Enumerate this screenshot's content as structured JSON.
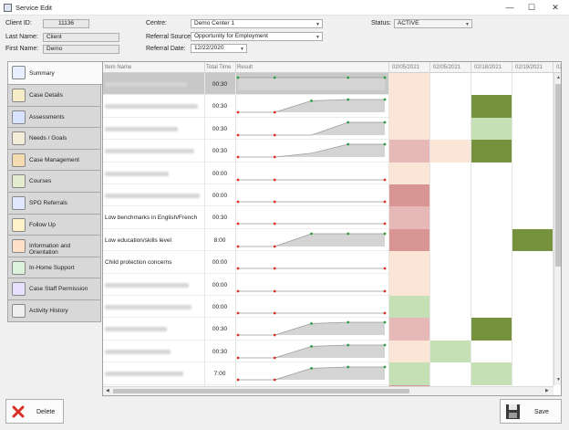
{
  "window": {
    "title": "Service Edit",
    "controls": [
      "—",
      "☐",
      "✕"
    ]
  },
  "form": {
    "client_id": {
      "label": "Client ID:",
      "value": "11136"
    },
    "last_name": {
      "label": "Last Name:",
      "value": "Client"
    },
    "first_name": {
      "label": "First Name:",
      "value": "Demo"
    },
    "centre": {
      "label": "Centre:",
      "value": "Demo Center 1"
    },
    "referral_source": {
      "label": "Referral Source:",
      "value": "Opportunity for Employment"
    },
    "referral_date": {
      "label": "Referral Date:",
      "value": "12/22/2020"
    },
    "status": {
      "label": "Status:",
      "value": "ACTIVE"
    }
  },
  "tabs": [
    {
      "label": "Summary",
      "icon": "line-chart-icon",
      "active": true
    },
    {
      "label": "Case Details",
      "icon": "document-icon"
    },
    {
      "label": "Assessments",
      "icon": "assessment-icon"
    },
    {
      "label": "Needs / Goals",
      "icon": "checklist-icon"
    },
    {
      "label": "Case Management",
      "icon": "briefcase-icon"
    },
    {
      "label": "Courses",
      "icon": "courses-icon"
    },
    {
      "label": "SPO Referrals",
      "icon": "referral-icon"
    },
    {
      "label": "Follow Up",
      "icon": "follow-up-icon"
    },
    {
      "label": "Information and Orientation",
      "icon": "calendar-icon"
    },
    {
      "label": "In-Home Support",
      "icon": "home-support-icon"
    },
    {
      "label": "Case Staff Permission",
      "icon": "staff-permission-icon"
    },
    {
      "label": "Activity History",
      "icon": "eye-icon"
    }
  ],
  "grid": {
    "columns": {
      "item_name": "Item Name",
      "total_time": "Total Time",
      "result": "Result"
    },
    "dates": [
      "02/05/2021",
      "02/05/2021",
      "02/18/2021",
      "02/19/2021",
      "02/"
    ],
    "rows": [
      {
        "name": "",
        "time": "00:30",
        "spark": [
          1,
          1,
          1,
          1,
          1
        ],
        "heat": [
          "#fbe5d6",
          "#ffffff",
          "#ffffff",
          "#ffffff",
          "#ffffff"
        ],
        "selected": true
      },
      {
        "name": "",
        "time": "00:30",
        "spark": [
          0,
          0,
          0.9,
          1,
          1
        ],
        "heat": [
          "#fbe5d6",
          "#ffffff",
          "#76923c",
          "#ffffff",
          "#ffffff"
        ]
      },
      {
        "name": "",
        "time": "00:30",
        "spark": [
          0,
          0,
          0,
          1,
          1
        ],
        "heat": [
          "#fbe5d6",
          "#ffffff",
          "#c5e0b4",
          "#ffffff",
          "#ffffff"
        ]
      },
      {
        "name": "",
        "time": "00:30",
        "spark": [
          0,
          0,
          0.3,
          1,
          1
        ],
        "heat": [
          "#e6b9b8",
          "#fbe5d6",
          "#76923c",
          "#ffffff",
          "#ffffff"
        ]
      },
      {
        "name": "",
        "time": "00:00",
        "spark": [
          0,
          0,
          0,
          0,
          0
        ],
        "heat": [
          "#fbe5d6",
          "#ffffff",
          "#ffffff",
          "#ffffff",
          "#ffffff"
        ]
      },
      {
        "name": "",
        "time": "00:00",
        "spark": [
          0,
          0,
          0,
          0,
          0
        ],
        "heat": [
          "#d99594",
          "#ffffff",
          "#ffffff",
          "#ffffff",
          "#ffffff"
        ]
      },
      {
        "name": "Low benchmarks in English/French",
        "time": "00:30",
        "spark": [
          0,
          0,
          0,
          0,
          0
        ],
        "heat": [
          "#e6b9b8",
          "#ffffff",
          "#ffffff",
          "#ffffff",
          "#ffffff"
        ]
      },
      {
        "name": "Low education/skills level",
        "time": "8:00",
        "spark": [
          0,
          0,
          1,
          1,
          1
        ],
        "heat": [
          "#d99594",
          "#ffffff",
          "#ffffff",
          "#76923c",
          "#ffffff"
        ]
      },
      {
        "name": "Child protection concerns",
        "time": "00:00",
        "spark": [
          0,
          0,
          0,
          0,
          0
        ],
        "heat": [
          "#fbe5d6",
          "#ffffff",
          "#ffffff",
          "#ffffff",
          "#ffffff"
        ]
      },
      {
        "name": "",
        "time": "00:00",
        "spark": [
          0,
          0,
          0,
          0,
          0
        ],
        "heat": [
          "#fbe5d6",
          "#ffffff",
          "#ffffff",
          "#ffffff",
          "#ffffff"
        ]
      },
      {
        "name": "",
        "time": "00:00",
        "spark": [
          0,
          0,
          0,
          0,
          0
        ],
        "heat": [
          "#c5e0b4",
          "#ffffff",
          "#ffffff",
          "#ffffff",
          "#ffffff"
        ]
      },
      {
        "name": "",
        "time": "00:30",
        "spark": [
          0,
          0,
          0.9,
          1,
          1
        ],
        "heat": [
          "#e6b9b8",
          "#ffffff",
          "#76923c",
          "#ffffff",
          "#ffffff"
        ]
      },
      {
        "name": "",
        "time": "00:30",
        "spark": [
          0,
          0,
          0.9,
          1,
          1
        ],
        "heat": [
          "#fbe5d6",
          "#c5e0b4",
          "#ffffff",
          "#ffffff",
          "#ffffff"
        ]
      },
      {
        "name": "",
        "time": "7:00",
        "spark": [
          0,
          0,
          0.9,
          1,
          1
        ],
        "heat": [
          "#c5e0b4",
          "#ffffff",
          "#c5e0b4",
          "#ffffff",
          "#ffffff"
        ]
      },
      {
        "name": "",
        "time": "",
        "spark": [
          0,
          0,
          0,
          0,
          0
        ],
        "heat": [
          "#d99594",
          "#ffffff",
          "#ffffff",
          "#ffffff",
          "#ffffff"
        ]
      }
    ]
  },
  "buttons": {
    "delete": "Delete",
    "save": "Save"
  },
  "colors": {
    "spark_low": "#e0302b",
    "spark_high": "#2ea043",
    "spark_fill": "#d4d4d4"
  }
}
